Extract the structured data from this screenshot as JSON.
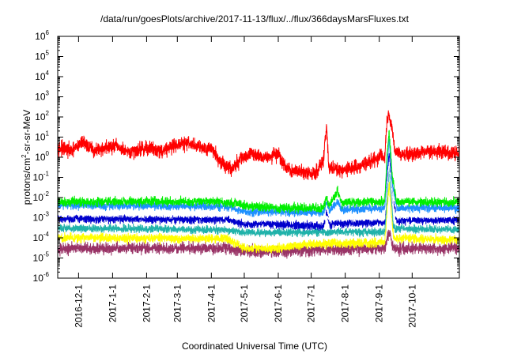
{
  "chart_data": {
    "type": "line",
    "title": "/data/run/goesPlots/archive/2017-11-13/flux/../flux/366daysMarsFluxes.txt",
    "xlabel": "Coordinated Universal Time (UTC)",
    "ylabel": "protons/cm2-sr-sr-MeV",
    "ylabel_parts": [
      "protons/cm",
      "2",
      "-sr-sr-MeV"
    ],
    "y_scale": "log",
    "ylim": [
      1e-06,
      1000000.0
    ],
    "xlim": [
      "2016-11-12",
      "2017-11-13"
    ],
    "y_ticks": [
      {
        "base": "10",
        "exp": "-6",
        "value": 1e-06
      },
      {
        "base": "10",
        "exp": "-5",
        "value": 1e-05
      },
      {
        "base": "10",
        "exp": "-4",
        "value": 0.0001
      },
      {
        "base": "10",
        "exp": "-3",
        "value": 0.001
      },
      {
        "base": "10",
        "exp": "-2",
        "value": 0.01
      },
      {
        "base": "10",
        "exp": "-1",
        "value": 0.1
      },
      {
        "base": "10",
        "exp": "0",
        "value": 1
      },
      {
        "base": "10",
        "exp": "1",
        "value": 10
      },
      {
        "base": "10",
        "exp": "2",
        "value": 100
      },
      {
        "base": "10",
        "exp": "3",
        "value": 1000
      },
      {
        "base": "10",
        "exp": "4",
        "value": 10000
      },
      {
        "base": "10",
        "exp": "5",
        "value": 100000
      },
      {
        "base": "10",
        "exp": "6",
        "value": 1000000
      }
    ],
    "x_ticks": [
      {
        "label": "2016-12-1",
        "date": "2016-12-01"
      },
      {
        "label": "2017-1-1",
        "date": "2017-01-01"
      },
      {
        "label": "2017-2-1",
        "date": "2017-02-01"
      },
      {
        "label": "2017-3-1",
        "date": "2017-03-01"
      },
      {
        "label": "2017-4-1",
        "date": "2017-04-01"
      },
      {
        "label": "2017-5-1",
        "date": "2017-05-01"
      },
      {
        "label": "2017-6-1",
        "date": "2017-06-01"
      },
      {
        "label": "2017-7-1",
        "date": "2017-07-01"
      },
      {
        "label": "2017-8-1",
        "date": "2017-08-01"
      },
      {
        "label": "2017-9-1",
        "date": "2017-09-01"
      },
      {
        "label": "2017-10-1",
        "date": "2017-10-01"
      }
    ],
    "grid": false,
    "legend": "none",
    "series": [
      {
        "color": "#ff0000",
        "noise_decades": 0.22,
        "points": [
          [
            "2016-11-12",
            3
          ],
          [
            "2016-11-25",
            2
          ],
          [
            "2016-12-05",
            6
          ],
          [
            "2016-12-15",
            2
          ],
          [
            "2016-12-25",
            3
          ],
          [
            "2017-01-05",
            3.5
          ],
          [
            "2017-01-15",
            1.5
          ],
          [
            "2017-01-25",
            2.5
          ],
          [
            "2017-02-05",
            3
          ],
          [
            "2017-02-15",
            2
          ],
          [
            "2017-02-25",
            4
          ],
          [
            "2017-03-10",
            5
          ],
          [
            "2017-03-25",
            3
          ],
          [
            "2017-04-01",
            3
          ],
          [
            "2017-04-10",
            0.5
          ],
          [
            "2017-04-20",
            0.25
          ],
          [
            "2017-04-28",
            0.9
          ],
          [
            "2017-05-08",
            1.5
          ],
          [
            "2017-05-20",
            1
          ],
          [
            "2017-06-01",
            1.5
          ],
          [
            "2017-06-05",
            0.5
          ],
          [
            "2017-06-12",
            0.2
          ],
          [
            "2017-06-22",
            0.2
          ],
          [
            "2017-07-05",
            0.15
          ],
          [
            "2017-07-12",
            0.6
          ],
          [
            "2017-07-15",
            40
          ],
          [
            "2017-07-17",
            0.3
          ],
          [
            "2017-07-28",
            0.2
          ],
          [
            "2017-08-10",
            0.3
          ],
          [
            "2017-08-20",
            0.5
          ],
          [
            "2017-09-01",
            1
          ],
          [
            "2017-09-06",
            1
          ],
          [
            "2017-09-08",
            60
          ],
          [
            "2017-09-10",
            120
          ],
          [
            "2017-09-12",
            40
          ],
          [
            "2017-09-16",
            1.5
          ],
          [
            "2017-10-01",
            1.5
          ],
          [
            "2017-10-15",
            2
          ],
          [
            "2017-11-13",
            1.5
          ]
        ]
      },
      {
        "color": "#00ee00",
        "noise_decades": 0.14,
        "points": [
          [
            "2016-11-12",
            0.006
          ],
          [
            "2017-01-15",
            0.0065
          ],
          [
            "2017-04-15",
            0.006
          ],
          [
            "2017-05-01",
            0.004
          ],
          [
            "2017-06-01",
            0.003
          ],
          [
            "2017-07-12",
            0.003
          ],
          [
            "2017-07-15",
            0.01
          ],
          [
            "2017-07-17",
            0.004
          ],
          [
            "2017-07-25",
            0.02
          ],
          [
            "2017-07-29",
            0.005
          ],
          [
            "2017-08-25",
            0.006
          ],
          [
            "2017-09-06",
            0.006
          ],
          [
            "2017-09-08",
            1
          ],
          [
            "2017-09-10",
            20
          ],
          [
            "2017-09-13",
            0.1
          ],
          [
            "2017-09-17",
            0.006
          ],
          [
            "2017-11-13",
            0.006
          ]
        ]
      },
      {
        "color": "#1e90ff",
        "noise_decades": 0.13,
        "points": [
          [
            "2016-11-12",
            0.004
          ],
          [
            "2017-02-01",
            0.004
          ],
          [
            "2017-04-15",
            0.0035
          ],
          [
            "2017-05-01",
            0.002
          ],
          [
            "2017-07-12",
            0.0018
          ],
          [
            "2017-07-15",
            0.006
          ],
          [
            "2017-07-18",
            0.0025
          ],
          [
            "2017-07-25",
            0.006
          ],
          [
            "2017-07-29",
            0.0025
          ],
          [
            "2017-09-06",
            0.003
          ],
          [
            "2017-09-08",
            0.3
          ],
          [
            "2017-09-10",
            8
          ],
          [
            "2017-09-13",
            0.05
          ],
          [
            "2017-09-17",
            0.003
          ],
          [
            "2017-11-13",
            0.003
          ]
        ]
      },
      {
        "color": "#ffffff",
        "noise_decades": 0.1,
        "points": [
          [
            "2016-11-12",
            0.0016
          ],
          [
            "2017-04-15",
            0.0014
          ],
          [
            "2017-05-01",
            0.0009
          ],
          [
            "2017-09-06",
            0.001
          ],
          [
            "2017-09-10",
            0.5
          ],
          [
            "2017-09-15",
            0.0012
          ],
          [
            "2017-11-13",
            0.0014
          ]
        ]
      },
      {
        "color": "#0000cc",
        "noise_decades": 0.13,
        "points": [
          [
            "2016-11-12",
            0.0009
          ],
          [
            "2017-04-15",
            0.0008
          ],
          [
            "2017-05-01",
            0.0005
          ],
          [
            "2017-07-12",
            0.0004
          ],
          [
            "2017-07-15",
            0.0015
          ],
          [
            "2017-07-18",
            0.0005
          ],
          [
            "2017-09-06",
            0.0006
          ],
          [
            "2017-09-08",
            0.05
          ],
          [
            "2017-09-10",
            2
          ],
          [
            "2017-09-13",
            0.01
          ],
          [
            "2017-09-17",
            0.0007
          ],
          [
            "2017-11-13",
            0.0008
          ]
        ]
      },
      {
        "color": "#20b2aa",
        "noise_decades": 0.12,
        "points": [
          [
            "2016-11-12",
            0.0003
          ],
          [
            "2017-04-15",
            0.00025
          ],
          [
            "2017-05-01",
            0.00018
          ],
          [
            "2017-09-06",
            0.0002
          ],
          [
            "2017-09-10",
            0.3
          ],
          [
            "2017-09-14",
            0.0003
          ],
          [
            "2017-11-13",
            0.00025
          ]
        ]
      },
      {
        "color": "#ffff00",
        "noise_decades": 0.14,
        "points": [
          [
            "2016-11-12",
            0.0001
          ],
          [
            "2017-04-15",
            9e-05
          ],
          [
            "2017-05-01",
            3e-05
          ],
          [
            "2017-06-01",
            3e-05
          ],
          [
            "2017-07-01",
            5e-05
          ],
          [
            "2017-09-06",
            6e-05
          ],
          [
            "2017-09-10",
            0.05
          ],
          [
            "2017-09-14",
            0.0001
          ],
          [
            "2017-11-13",
            8e-05
          ]
        ]
      },
      {
        "color": "#993366",
        "noise_decades": 0.18,
        "points": [
          [
            "2016-11-12",
            3e-05
          ],
          [
            "2017-04-15",
            3e-05
          ],
          [
            "2017-05-01",
            2e-05
          ],
          [
            "2017-07-01",
            2.5e-05
          ],
          [
            "2017-09-06",
            3e-05
          ],
          [
            "2017-09-10",
            0.0002
          ],
          [
            "2017-09-14",
            3e-05
          ],
          [
            "2017-11-13",
            3e-05
          ]
        ]
      }
    ]
  }
}
